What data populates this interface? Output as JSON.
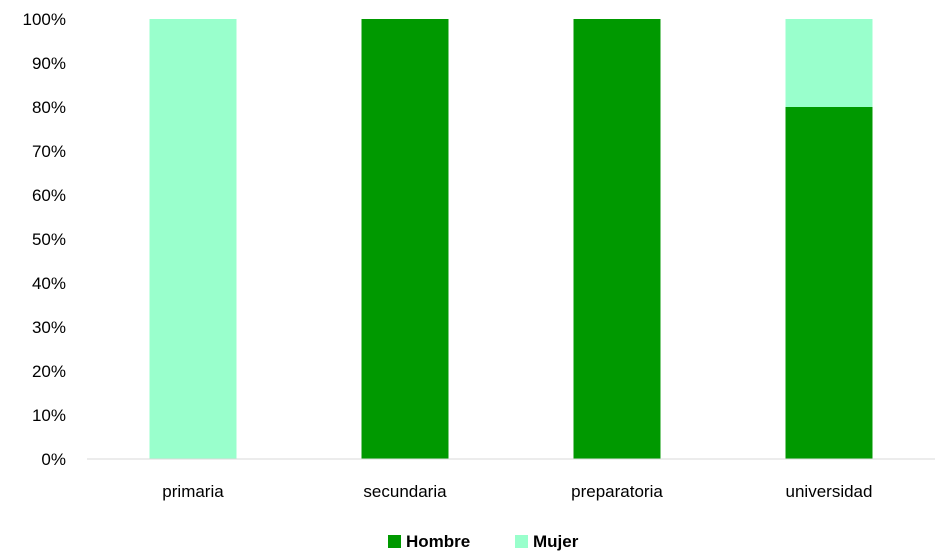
{
  "chart_data": {
    "type": "bar",
    "stacked": true,
    "title": "",
    "xlabel": "",
    "ylabel": "",
    "categories": [
      "primaria",
      "secundaria",
      "preparatoria",
      "universidad"
    ],
    "series": [
      {
        "name": "Hombre",
        "values": [
          0,
          100,
          100,
          80
        ],
        "color": "#009900"
      },
      {
        "name": "Mujer",
        "values": [
          100,
          0,
          0,
          20
        ],
        "color": "#99ffcc"
      }
    ],
    "ylim": [
      0,
      100
    ],
    "yticks": [
      "0%",
      "10%",
      "20%",
      "30%",
      "40%",
      "50%",
      "60%",
      "70%",
      "80%",
      "90%",
      "100%"
    ],
    "grid": false,
    "legend_position": "bottom"
  }
}
